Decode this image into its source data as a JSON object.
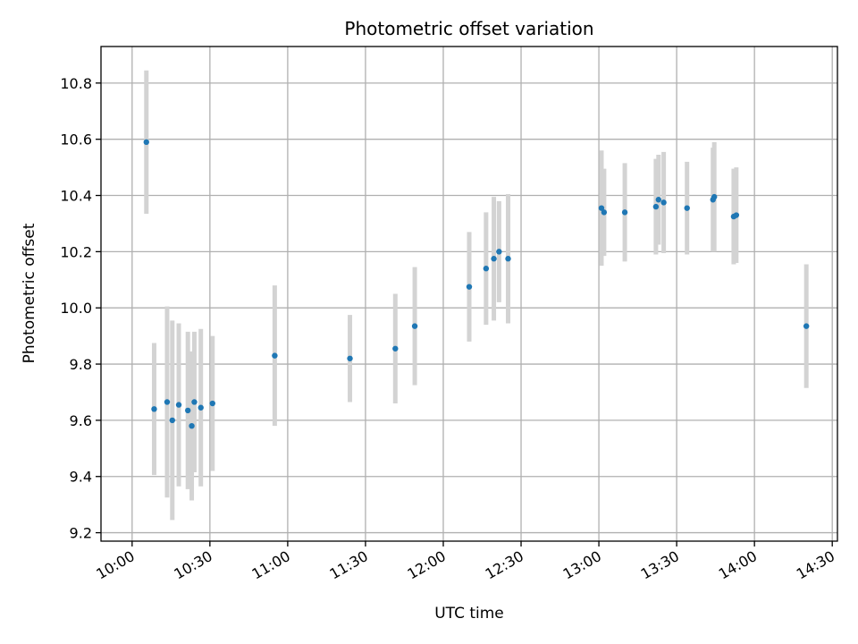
{
  "chart_data": {
    "type": "scatter",
    "title": "Photometric offset variation",
    "xlabel": "UTC time",
    "ylabel": "Photometric offset",
    "xlim_minutes": [
      -12,
      272
    ],
    "ylim": [
      9.17,
      10.93
    ],
    "grid": true,
    "x_ticks": [
      {
        "minutes": 0,
        "label": "10:00"
      },
      {
        "minutes": 30,
        "label": "10:30"
      },
      {
        "minutes": 60,
        "label": "11:00"
      },
      {
        "minutes": 90,
        "label": "11:30"
      },
      {
        "minutes": 120,
        "label": "12:00"
      },
      {
        "minutes": 150,
        "label": "12:30"
      },
      {
        "minutes": 180,
        "label": "13:00"
      },
      {
        "minutes": 210,
        "label": "13:30"
      },
      {
        "minutes": 240,
        "label": "14:00"
      },
      {
        "minutes": 270,
        "label": "14:30"
      }
    ],
    "y_ticks": [
      {
        "value": 9.2,
        "label": "9.2"
      },
      {
        "value": 9.4,
        "label": "9.4"
      },
      {
        "value": 9.6,
        "label": "9.6"
      },
      {
        "value": 9.8,
        "label": "9.8"
      },
      {
        "value": 10.0,
        "label": "10.0"
      },
      {
        "value": 10.2,
        "label": "10.2"
      },
      {
        "value": 10.4,
        "label": "10.4"
      },
      {
        "value": 10.6,
        "label": "10.6"
      },
      {
        "value": 10.8,
        "label": "10.8"
      }
    ],
    "series": [
      {
        "name": "offset",
        "marker_color": "#1f77b4",
        "errorbar_color": "#d3d3d3",
        "points": [
          {
            "minutes": 5.5,
            "y": 10.59,
            "err": 0.255
          },
          {
            "minutes": 8.5,
            "y": 9.64,
            "err": 0.235
          },
          {
            "minutes": 13.5,
            "y": 9.665,
            "err": 0.34
          },
          {
            "minutes": 15.5,
            "y": 9.6,
            "err": 0.355
          },
          {
            "minutes": 18.0,
            "y": 9.655,
            "err": 0.29
          },
          {
            "minutes": 21.5,
            "y": 9.635,
            "err": 0.28
          },
          {
            "minutes": 23.0,
            "y": 9.58,
            "err": 0.265
          },
          {
            "minutes": 24.0,
            "y": 9.665,
            "err": 0.25
          },
          {
            "minutes": 26.5,
            "y": 9.645,
            "err": 0.28
          },
          {
            "minutes": 31.0,
            "y": 9.66,
            "err": 0.24
          },
          {
            "minutes": 55.0,
            "y": 9.83,
            "err": 0.25
          },
          {
            "minutes": 84.0,
            "y": 9.82,
            "err": 0.155
          },
          {
            "minutes": 101.5,
            "y": 9.855,
            "err": 0.195
          },
          {
            "minutes": 109.0,
            "y": 9.935,
            "err": 0.21
          },
          {
            "minutes": 130.0,
            "y": 10.075,
            "err": 0.195
          },
          {
            "minutes": 136.5,
            "y": 10.14,
            "err": 0.2
          },
          {
            "minutes": 139.5,
            "y": 10.175,
            "err": 0.22
          },
          {
            "minutes": 141.5,
            "y": 10.2,
            "err": 0.18
          },
          {
            "minutes": 145.0,
            "y": 10.175,
            "err": 0.23
          },
          {
            "minutes": 181.0,
            "y": 10.355,
            "err": 0.205
          },
          {
            "minutes": 182.0,
            "y": 10.34,
            "err": 0.155
          },
          {
            "minutes": 190.0,
            "y": 10.34,
            "err": 0.175
          },
          {
            "minutes": 202.0,
            "y": 10.36,
            "err": 0.17
          },
          {
            "minutes": 203.0,
            "y": 10.385,
            "err": 0.16
          },
          {
            "minutes": 205.0,
            "y": 10.375,
            "err": 0.18
          },
          {
            "minutes": 214.0,
            "y": 10.355,
            "err": 0.165
          },
          {
            "minutes": 224.0,
            "y": 10.385,
            "err": 0.185
          },
          {
            "minutes": 224.5,
            "y": 10.395,
            "err": 0.195
          },
          {
            "minutes": 232.0,
            "y": 10.325,
            "err": 0.17
          },
          {
            "minutes": 233.0,
            "y": 10.33,
            "err": 0.17
          },
          {
            "minutes": 260.0,
            "y": 9.935,
            "err": 0.22
          }
        ]
      }
    ]
  }
}
